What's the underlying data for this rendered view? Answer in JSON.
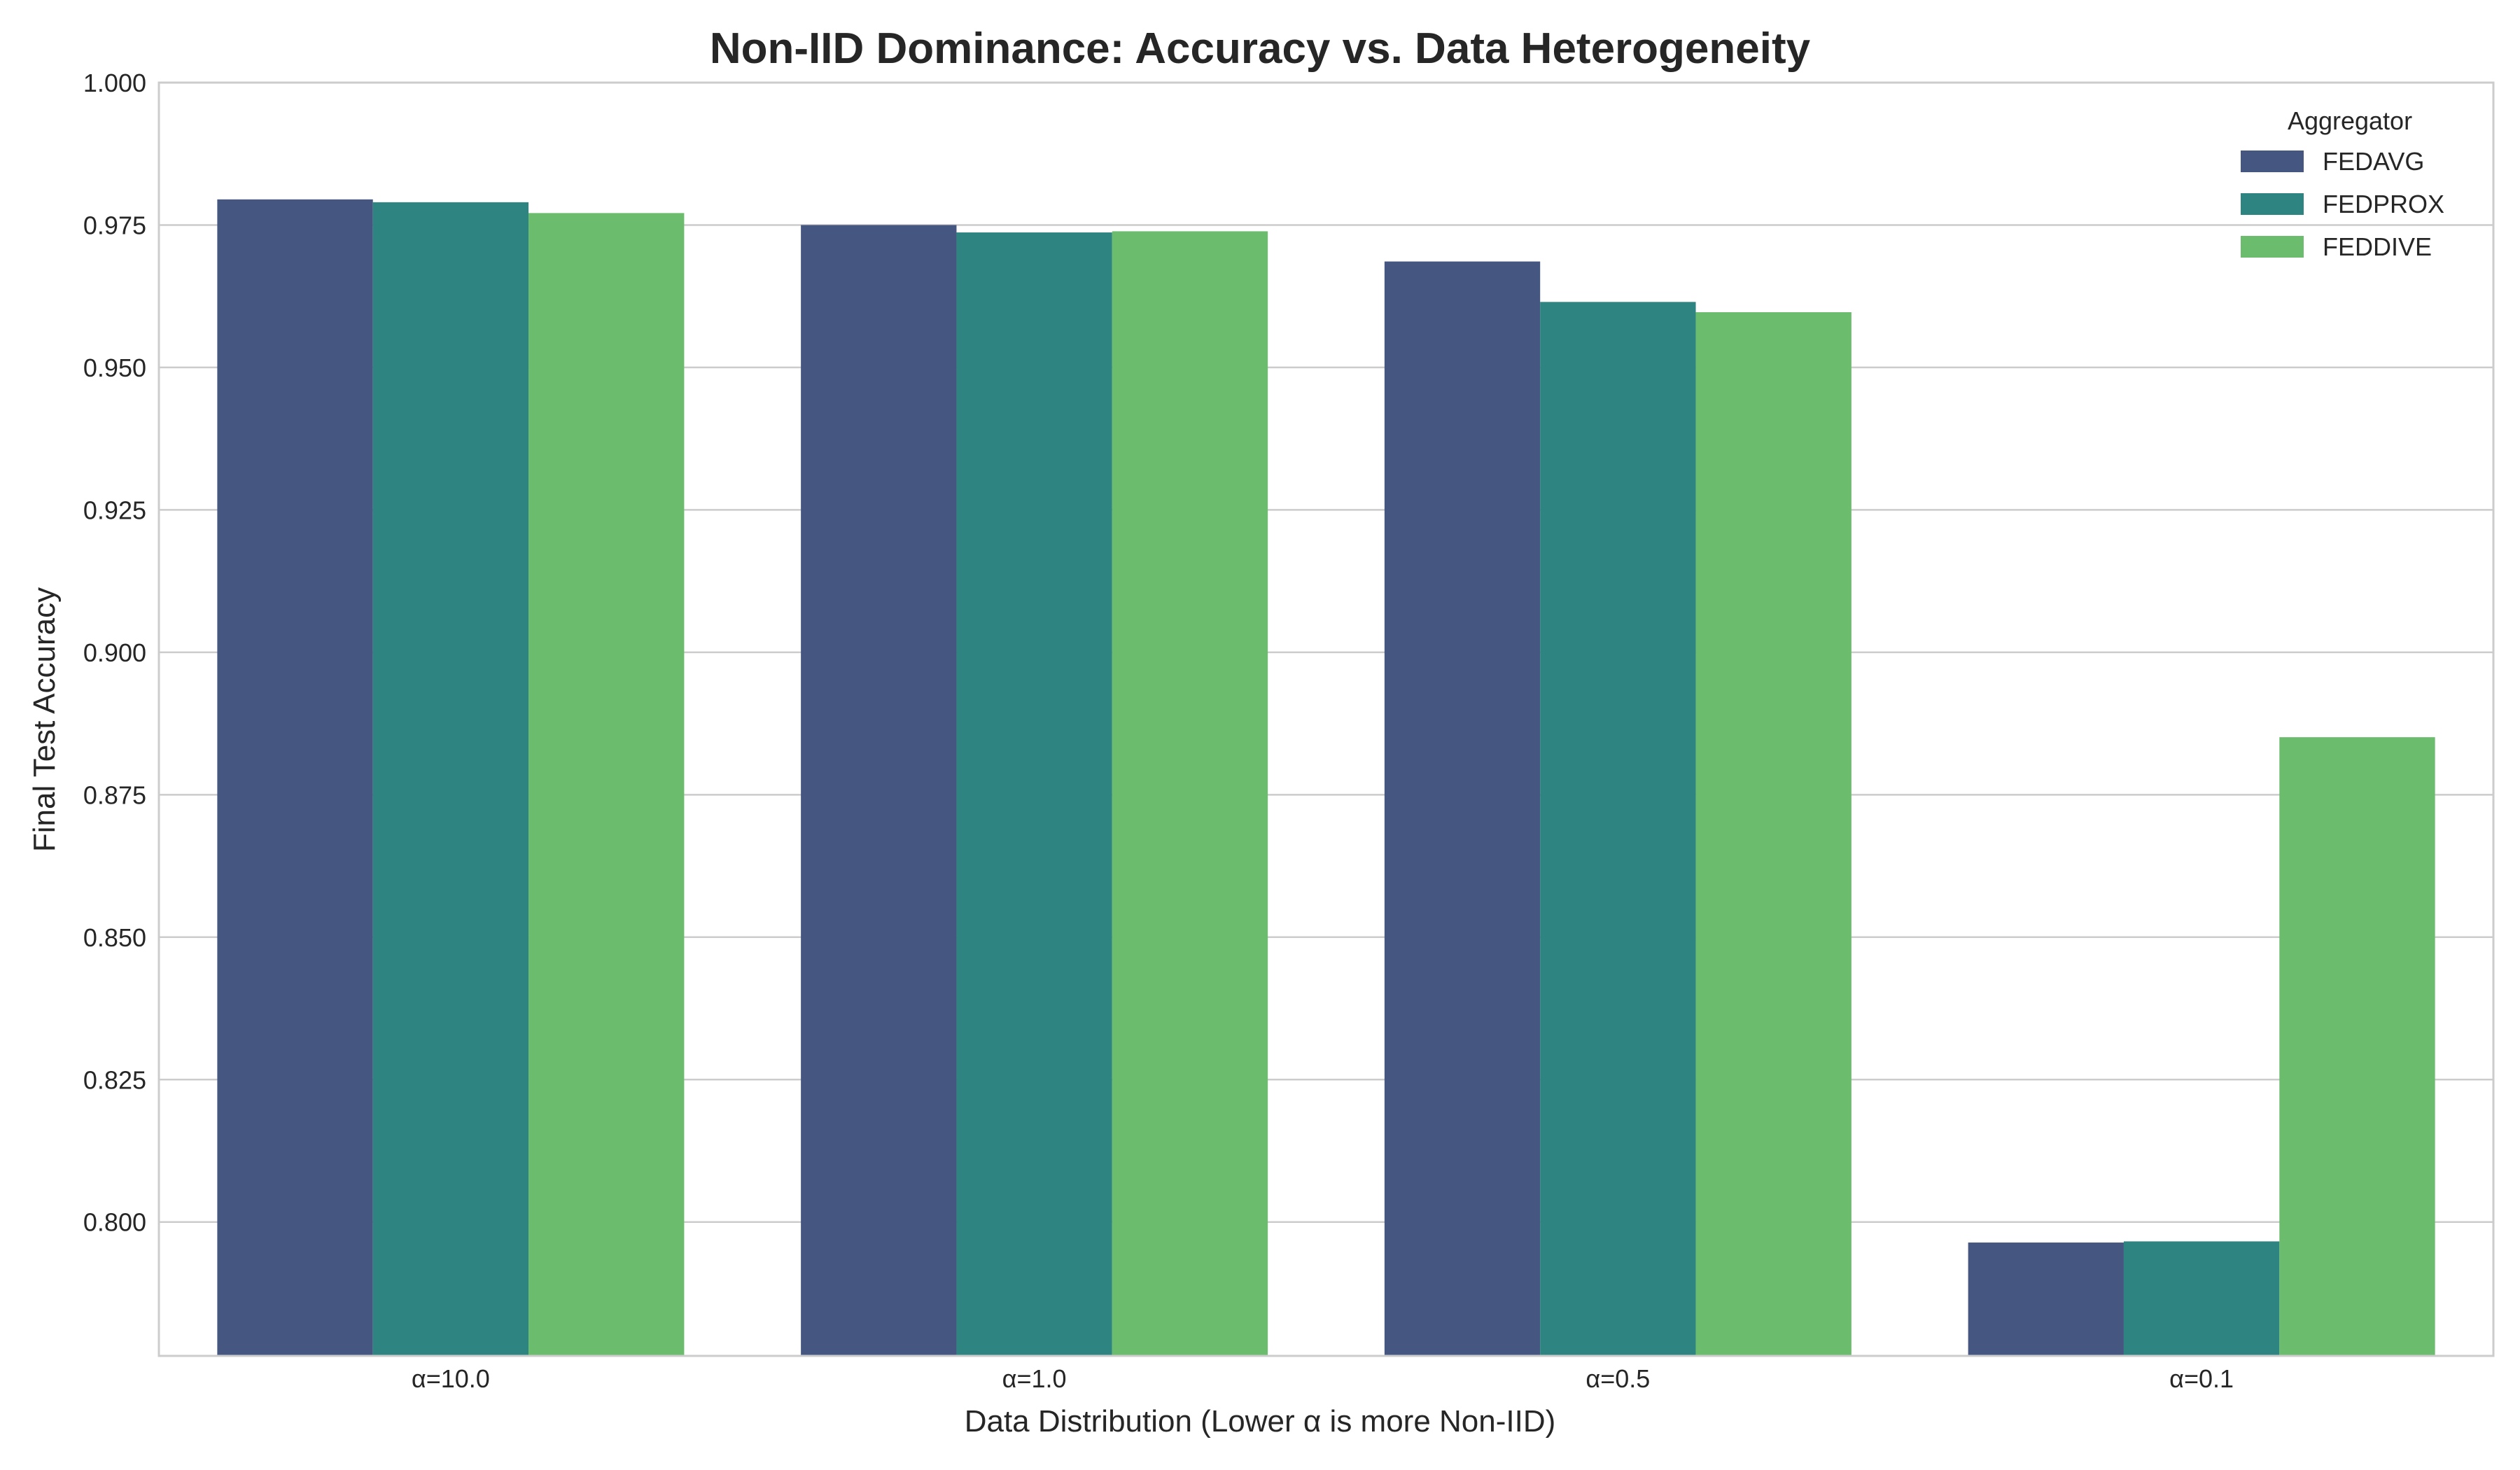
{
  "chart_data": {
    "type": "bar",
    "title": "Non-IID Dominance: Accuracy vs. Data Heterogeneity",
    "xlabel": "Data Distribution (Lower α is more Non-IID)",
    "ylabel": "Final Test Accuracy",
    "categories": [
      "α=10.0",
      "α=1.0",
      "α=0.5",
      "α=0.1"
    ],
    "ylim": [
      0.7765,
      1.0
    ],
    "yticks": [
      "1.000",
      "0.975",
      "0.950",
      "0.925",
      "0.900",
      "0.875",
      "0.850",
      "0.825",
      "0.800"
    ],
    "grid": true,
    "legend": {
      "title": "Aggregator",
      "placement": "top-right"
    },
    "series": [
      {
        "name": "FEDAVG",
        "color": "#455681",
        "values": [
          0.9795,
          0.975,
          0.9686,
          0.7964
        ]
      },
      {
        "name": "FEDPROX",
        "color": "#2e8480",
        "values": [
          0.979,
          0.9737,
          0.9615,
          0.7966
        ]
      },
      {
        "name": "FEDDIVE",
        "color": "#6bbc6d",
        "values": [
          0.9771,
          0.9739,
          0.9597,
          0.8851
        ]
      }
    ]
  }
}
